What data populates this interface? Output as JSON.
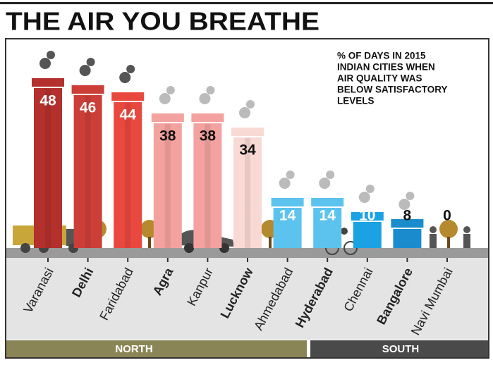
{
  "chart_data": {
    "type": "chimney",
    "title": "THE AIR YOU BREATHE",
    "annotation": [
      "% OF DAYS IN 2015",
      "INDIAN CITIES WHEN",
      "AIR QUALITY WAS",
      "BELOW SATISFACTORY",
      "LEVELS"
    ],
    "categories": [
      "Varanasi",
      "Delhi",
      "Faridabad",
      "Agra",
      "Kanpur",
      "Lucknow",
      "Ahmedabad",
      "Hyderabad",
      "Chennai",
      "Bangalore",
      "Navi Mumbai"
    ],
    "values": [
      48,
      46,
      44,
      38,
      38,
      34,
      14,
      14,
      10,
      8,
      0
    ],
    "colors": [
      "#b3302c",
      "#cc3f38",
      "#e9483f",
      "#f4a29f",
      "#f4a29f",
      "#f9d9d4",
      "#5cc3ee",
      "#5cc3ee",
      "#1ba2e2",
      "#1a8ccd",
      "#9a9a9a"
    ],
    "bold": [
      false,
      true,
      false,
      true,
      false,
      true,
      false,
      true,
      false,
      true,
      false
    ],
    "regions": [
      "NORTH",
      "SOUTH"
    ]
  }
}
